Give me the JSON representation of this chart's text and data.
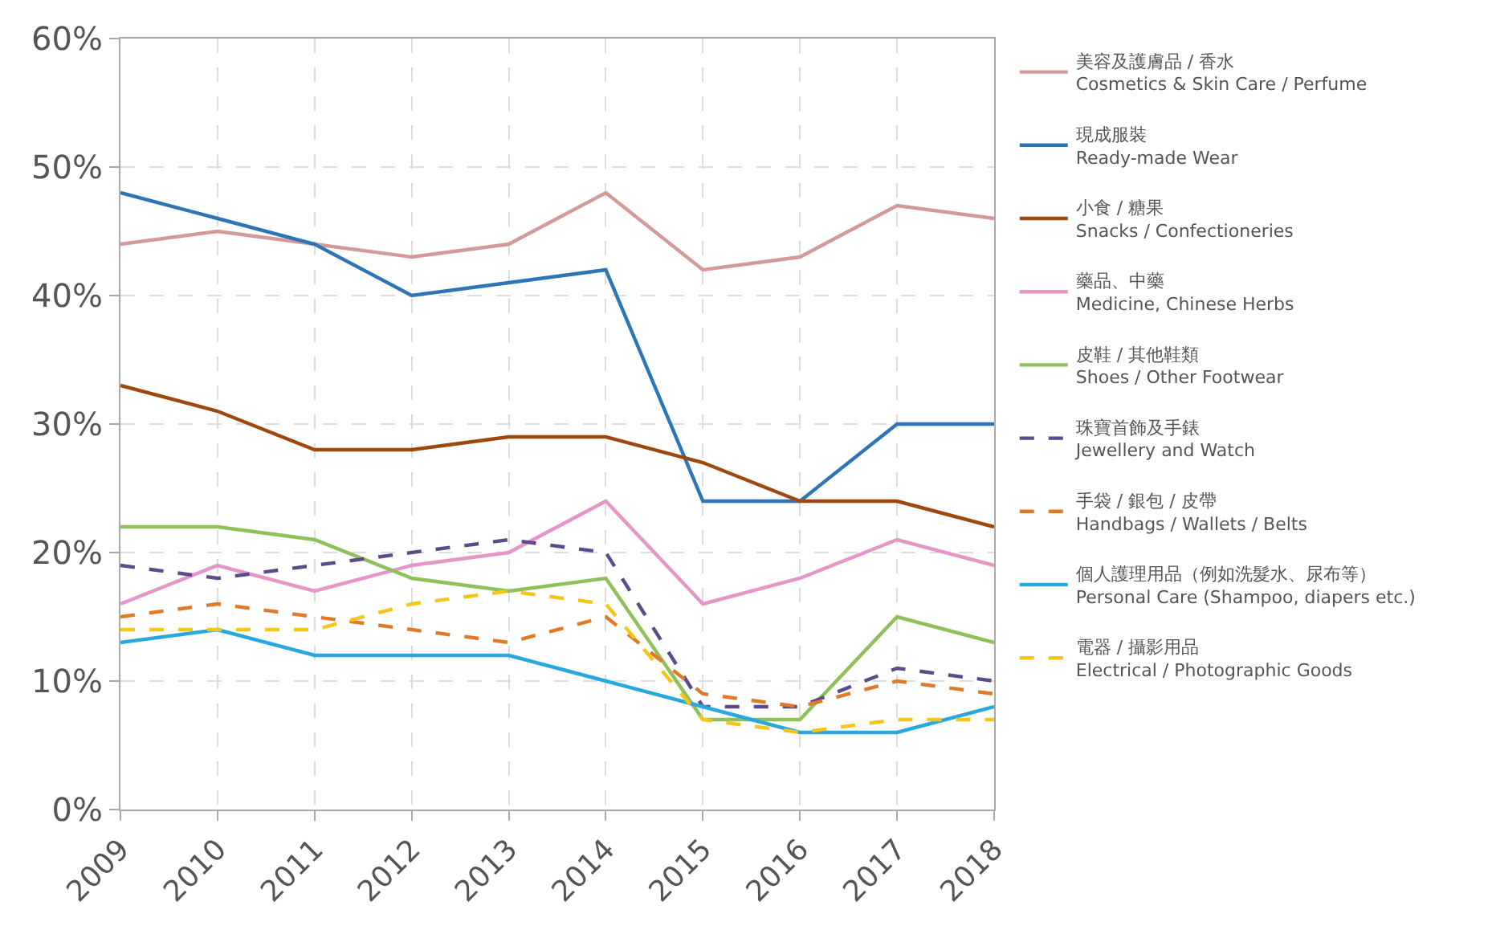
{
  "chart_data": {
    "type": "line",
    "categories": [
      "2009",
      "2010",
      "2011",
      "2012",
      "2013",
      "2014",
      "2015",
      "2016",
      "2017",
      "2018"
    ],
    "ylim": [
      0,
      60
    ],
    "yticks": [
      {
        "value": 0,
        "label": "0%"
      },
      {
        "value": 10,
        "label": "10%"
      },
      {
        "value": 20,
        "label": "20%"
      },
      {
        "value": 30,
        "label": "30%"
      },
      {
        "value": 40,
        "label": "40%"
      },
      {
        "value": 50,
        "label": "50%"
      },
      {
        "value": 60,
        "label": "60%"
      }
    ],
    "grid": true,
    "legend": "right",
    "marker": "none",
    "series": [
      {
        "name": "美容及護膚品 / 香水\nCosmetics & Skin Care / Perfume",
        "color": "#d49a9a",
        "line_style": "solid",
        "values": [
          44,
          45,
          44,
          43,
          44,
          48,
          42,
          43,
          47,
          46
        ]
      },
      {
        "name": "現成服裝\nReady-made Wear",
        "color": "#2e75b6",
        "line_style": "solid",
        "values": [
          48,
          46,
          44,
          40,
          41,
          42,
          24,
          24,
          30,
          30
        ]
      },
      {
        "name": "小食 / 糖果\nSnacks / Confectioneries",
        "color": "#9e480e",
        "line_style": "solid",
        "values": [
          33,
          31,
          28,
          28,
          29,
          29,
          27,
          24,
          24,
          22
        ]
      },
      {
        "name": "藥品、中藥\nMedicine, Chinese Herbs",
        "color": "#e695c8",
        "line_style": "solid",
        "values": [
          16,
          19,
          17,
          19,
          20,
          24,
          16,
          18,
          21,
          19
        ]
      },
      {
        "name": "皮鞋 / 其他鞋類\nShoes / Other Footwear",
        "color": "#8fc05a",
        "line_style": "solid",
        "values": [
          22,
          22,
          21,
          18,
          17,
          18,
          7,
          7,
          15,
          13
        ]
      },
      {
        "name": "珠寶首飾及手錶\nJewellery and Watch",
        "color": "#5b4a8c",
        "line_style": "dashed",
        "values": [
          19,
          18,
          19,
          20,
          21,
          20,
          8,
          8,
          11,
          10
        ]
      },
      {
        "name": "手袋 / 銀包 / 皮帶\nHandbags / Wallets / Belts",
        "color": "#e07a28",
        "line_style": "dashed",
        "values": [
          15,
          16,
          15,
          14,
          13,
          15,
          9,
          8,
          10,
          9
        ]
      },
      {
        "name": "個人護理用品（例如洗髮水、尿布等）\nPersonal Care (Shampoo, diapers etc.)",
        "color": "#29a8e0",
        "line_style": "solid",
        "values": [
          13,
          14,
          12,
          12,
          12,
          10,
          8,
          6,
          6,
          8
        ]
      },
      {
        "name": "電器 / 攝影用品\nElectrical / Photographic Goods",
        "color": "#f5c518",
        "line_style": "dashed",
        "values": [
          14,
          14,
          14,
          16,
          17,
          16,
          7,
          6,
          7,
          7
        ]
      }
    ]
  }
}
